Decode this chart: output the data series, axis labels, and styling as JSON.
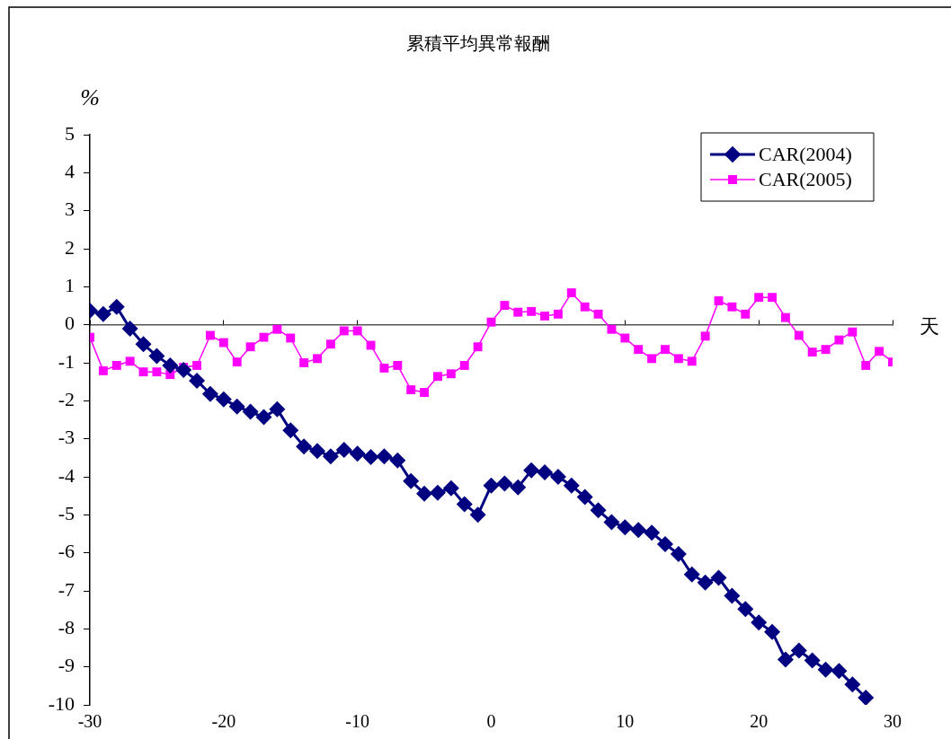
{
  "chart_data": {
    "type": "line",
    "title": "累積平均異常報酬",
    "ylabel": "%",
    "xlabel": "天",
    "x": [
      -30,
      -29,
      -28,
      -27,
      -26,
      -25,
      -24,
      -23,
      -22,
      -21,
      -20,
      -19,
      -18,
      -17,
      -16,
      -15,
      -14,
      -13,
      -12,
      -11,
      -10,
      -9,
      -8,
      -7,
      -6,
      -5,
      -4,
      -3,
      -2,
      -1,
      0,
      1,
      2,
      3,
      4,
      5,
      6,
      7,
      8,
      9,
      10,
      11,
      12,
      13,
      14,
      15,
      16,
      17,
      18,
      19,
      20,
      21,
      22,
      23,
      24,
      25,
      26,
      27,
      28,
      29,
      30
    ],
    "series": [
      {
        "name": "CAR(2004)",
        "color": "#000080",
        "marker": "diamond",
        "values": [
          0.37,
          0.28,
          0.47,
          -0.1,
          -0.51,
          -0.82,
          -1.07,
          -1.19,
          -1.47,
          -1.82,
          -1.96,
          -2.15,
          -2.29,
          -2.43,
          -2.22,
          -2.78,
          -3.2,
          -3.32,
          -3.46,
          -3.29,
          -3.39,
          -3.48,
          -3.46,
          -3.57,
          -4.11,
          -4.44,
          -4.42,
          -4.3,
          -4.72,
          -5.0,
          -4.23,
          -4.18,
          -4.28,
          -3.83,
          -3.88,
          -4.0,
          -4.23,
          -4.53,
          -4.88,
          -5.19,
          -5.33,
          -5.4,
          -5.47,
          -5.77,
          -6.03,
          -6.57,
          -6.78,
          -6.66,
          -7.13,
          -7.48,
          -7.83,
          -8.08,
          -8.81,
          -8.57,
          -8.83,
          -9.07,
          -9.11,
          -9.46,
          -9.81,
          null,
          null
        ]
      },
      {
        "name": "CAR(2005)",
        "color": "#ff00ff",
        "marker": "square",
        "values": [
          -0.33,
          -1.21,
          -1.07,
          -0.96,
          -1.24,
          -1.24,
          -1.31,
          -1.12,
          -1.07,
          -0.28,
          -0.47,
          -0.98,
          -0.58,
          -0.33,
          -0.12,
          -0.35,
          -1.0,
          -0.89,
          -0.51,
          -0.16,
          -0.16,
          -0.54,
          -1.14,
          -1.07,
          -1.71,
          -1.78,
          -1.36,
          -1.29,
          -1.07,
          -0.58,
          0.07,
          0.51,
          0.33,
          0.35,
          0.23,
          0.28,
          0.84,
          0.47,
          0.28,
          -0.12,
          -0.35,
          -0.65,
          -0.89,
          -0.65,
          -0.89,
          -0.96,
          -0.3,
          0.63,
          0.47,
          0.28,
          0.72,
          0.72,
          0.19,
          -0.28,
          -0.72,
          -0.65,
          -0.4,
          -0.19,
          -1.07,
          -0.7,
          -0.98
        ]
      }
    ],
    "xlim": [
      -30,
      30
    ],
    "xticks": [
      -30,
      -20,
      -10,
      0,
      10,
      20,
      30
    ],
    "ylim": [
      -10,
      5
    ],
    "yticks": [
      -10,
      -9,
      -8,
      -7,
      -6,
      -5,
      -4,
      -3,
      -2,
      -1,
      0,
      1,
      2,
      3,
      4,
      5
    ],
    "legend": "top right",
    "line_style": "solid"
  }
}
